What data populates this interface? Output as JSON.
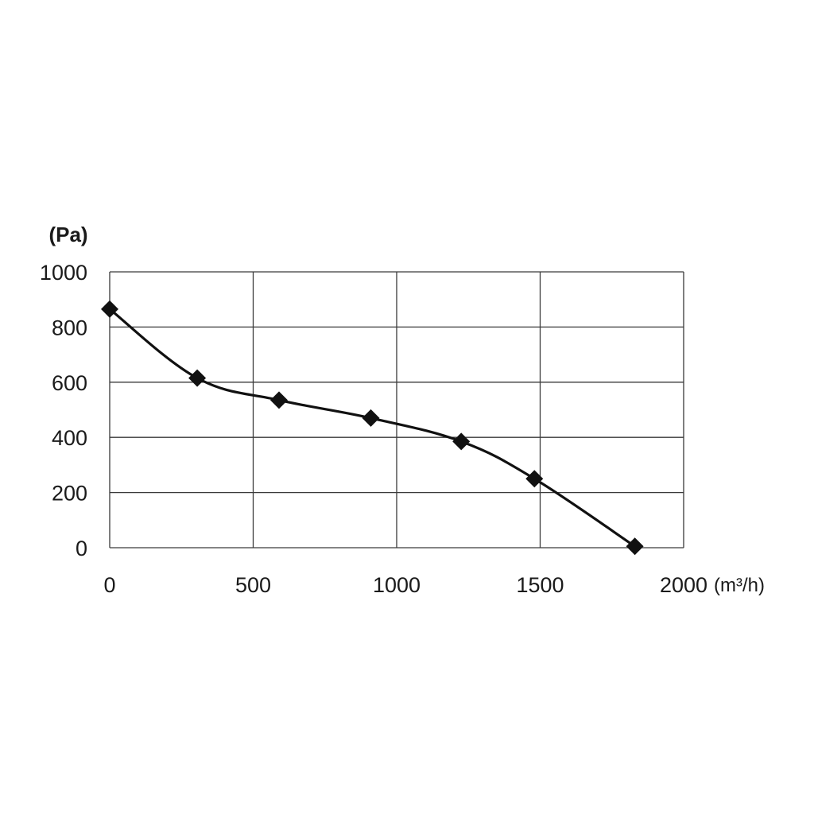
{
  "chart_data": {
    "type": "line",
    "title": "",
    "ylabel": "(Pa)",
    "xlabel": "(m³/h)",
    "xlim": [
      0,
      2000
    ],
    "ylim": [
      0,
      1000
    ],
    "x_ticks": [
      "0",
      "500",
      "1000",
      "1500",
      "2000"
    ],
    "y_ticks": [
      "0",
      "200",
      "400",
      "600",
      "800",
      "1000"
    ],
    "grid": true,
    "marker": "diamond",
    "series": [
      {
        "x": [
          0,
          305,
          590,
          910,
          1225,
          1480,
          1830
        ],
        "y": [
          865,
          615,
          535,
          470,
          385,
          250,
          5
        ]
      }
    ]
  }
}
